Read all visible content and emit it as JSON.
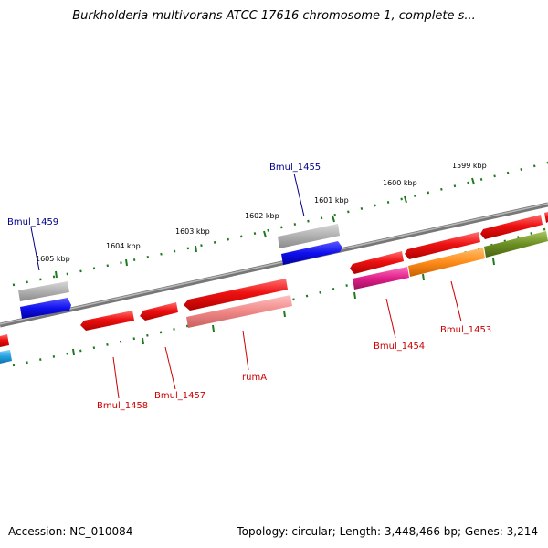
{
  "title": "Burkholderia multivorans ATCC 17616 chromosome 1, complete s...",
  "footer": {
    "accession": "Accession: NC_010084",
    "summary": "Topology: circular; Length: 3,448,466 bp; Genes: 3,214"
  },
  "ruler_labels": [
    "1599 kbp",
    "1600 kbp",
    "1601 kbp",
    "1602 kbp",
    "1603 kbp",
    "1604 kbp",
    "1605 kbp"
  ],
  "gene_labels": [
    {
      "name": "Bmul_1455",
      "color": "#00008b"
    },
    {
      "name": "Bmul_1459",
      "color": "#00008b"
    },
    {
      "name": "Bmul_1458",
      "color": "#cc0000"
    },
    {
      "name": "Bmul_1457",
      "color": "#cc0000"
    },
    {
      "name": "rumA",
      "color": "#cc0000"
    },
    {
      "name": "Bmul_1454",
      "color": "#cc0000"
    },
    {
      "name": "Bmul_1453",
      "color": "#cc0000"
    }
  ],
  "colors": {
    "backbone": "#808080",
    "tick": "#1e7a1e",
    "cds_red": "#ee1111",
    "gene_gray": "#b0b0b0",
    "gene_blue": "#1010ee",
    "rrna_pink": "#f08888",
    "magenta": "#e0208a",
    "orange": "#ff8c1a",
    "olive": "#6b8e23",
    "cyan": "#22a0e0"
  }
}
